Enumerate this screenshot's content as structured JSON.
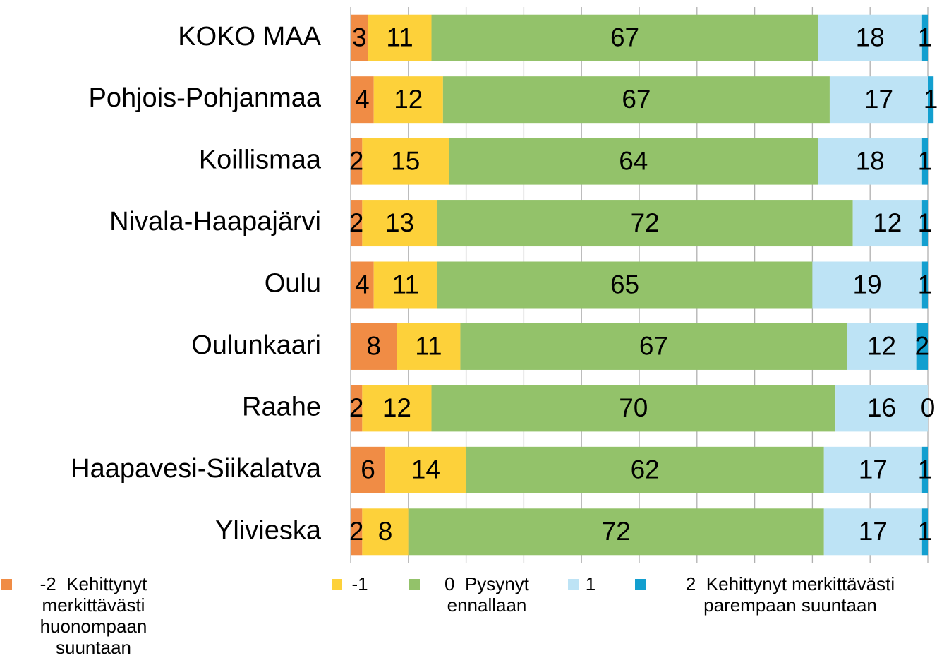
{
  "chart_data": {
    "type": "stacked_barh",
    "categories": [
      "KOKO MAA",
      "Pohjois-Pohjanmaa",
      "Koillismaa",
      "Nivala-Haapajärvi",
      "Oulu",
      "Oulunkaari",
      "Raahe",
      "Haapavesi-Siikalatva",
      "Ylivieska"
    ],
    "series": [
      {
        "name": "-2  Kehittynyt merkittävästi huonompaan suuntaan",
        "color": "#f08c45",
        "values": [
          3,
          4,
          2,
          2,
          4,
          8,
          2,
          6,
          2
        ]
      },
      {
        "name": "-1",
        "color": "#fdd13a",
        "values": [
          11,
          12,
          15,
          13,
          11,
          11,
          12,
          14,
          8
        ]
      },
      {
        "name": "0  Pysynyt ennallaan",
        "color": "#93c26a",
        "values": [
          67,
          67,
          64,
          72,
          65,
          67,
          70,
          62,
          72
        ]
      },
      {
        "name": "1",
        "color": "#bde3f5",
        "values": [
          18,
          17,
          18,
          12,
          19,
          12,
          16,
          17,
          17
        ]
      },
      {
        "name": "2  Kehittynyt merkittävästi parempaan suuntaan",
        "color": "#139fcf",
        "values": [
          1,
          1,
          1,
          1,
          1,
          2,
          0,
          1,
          1
        ]
      }
    ],
    "xlim": [
      0,
      100
    ],
    "xticks": [
      0,
      10,
      20,
      30,
      40,
      50,
      60,
      70,
      80,
      90,
      100
    ],
    "grid": true
  }
}
